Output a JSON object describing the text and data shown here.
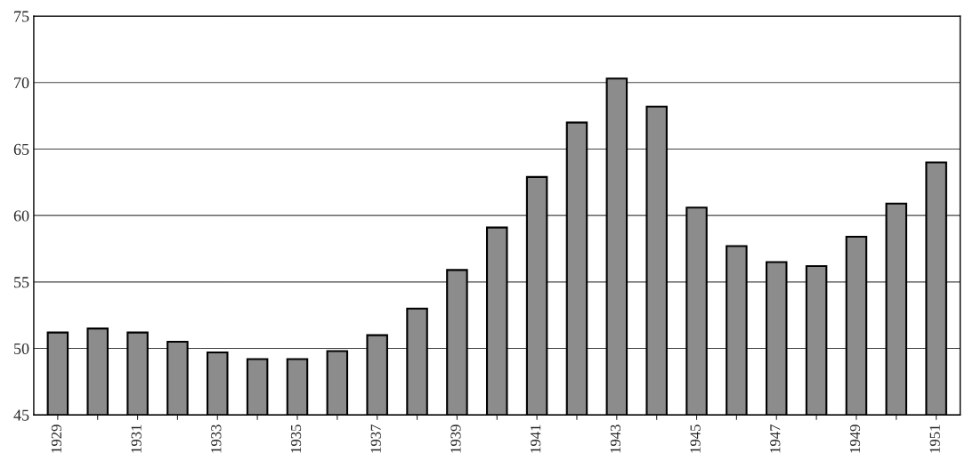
{
  "chart_data": {
    "type": "bar",
    "categories": [
      "1929",
      null,
      "1931",
      null,
      "1933",
      null,
      "1935",
      null,
      "1937",
      null,
      "1939",
      null,
      "1941",
      null,
      "1943",
      null,
      "1945",
      null,
      "1947",
      null,
      "1949",
      null,
      "1951"
    ],
    "values": [
      51.2,
      51.5,
      51.2,
      50.5,
      49.7,
      49.2,
      49.2,
      49.8,
      51.0,
      53.0,
      55.9,
      59.1,
      62.9,
      67.0,
      70.3,
      68.2,
      60.6,
      57.7,
      56.5,
      56.2,
      58.4,
      60.9,
      64.0
    ],
    "color": "#8c8c8c",
    "ylim": [
      45,
      75
    ],
    "yticks": [
      45,
      50,
      55,
      60,
      65,
      70,
      75
    ],
    "grid": "y"
  }
}
